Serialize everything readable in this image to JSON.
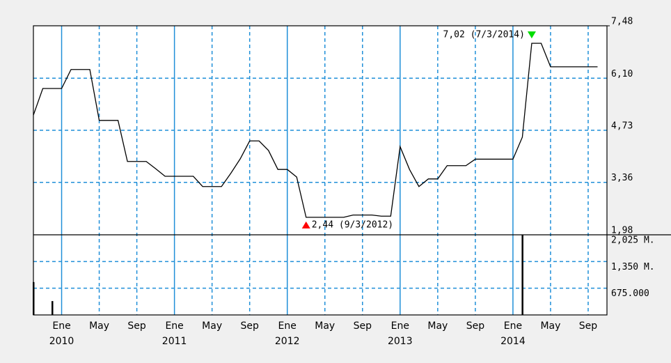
{
  "chart_data": {
    "type": "line",
    "x": [
      "2009-10",
      "2009-11",
      "2009-12",
      "2010-01",
      "2010-02",
      "2010-03",
      "2010-04",
      "2010-05",
      "2010-06",
      "2010-07",
      "2010-08",
      "2010-09",
      "2010-10",
      "2010-11",
      "2010-12",
      "2011-01",
      "2011-02",
      "2011-03",
      "2011-04",
      "2011-05",
      "2011-06",
      "2011-07",
      "2011-08",
      "2011-09",
      "2011-10",
      "2011-11",
      "2011-12",
      "2012-01",
      "2012-02",
      "2012-03",
      "2012-04",
      "2012-05",
      "2012-06",
      "2012-07",
      "2012-08",
      "2012-09",
      "2012-10",
      "2012-11",
      "2012-12",
      "2013-01",
      "2013-02",
      "2013-03",
      "2013-04",
      "2013-05",
      "2013-06",
      "2013-07",
      "2013-08",
      "2013-09",
      "2013-10",
      "2013-11",
      "2013-12",
      "2014-01",
      "2014-02",
      "2014-03",
      "2014-04",
      "2014-05",
      "2014-06",
      "2014-07",
      "2014-08",
      "2014-09",
      "2014-10"
    ],
    "series": [
      {
        "color": "#000000",
        "values": [
          5.13,
          5.83,
          5.83,
          5.83,
          6.33,
          6.33,
          6.33,
          4.99,
          4.99,
          4.99,
          3.91,
          3.91,
          3.91,
          3.72,
          3.52,
          3.52,
          3.52,
          3.52,
          3.25,
          3.25,
          3.25,
          3.6,
          3.98,
          4.45,
          4.45,
          4.2,
          3.7,
          3.7,
          3.5,
          2.44,
          2.44,
          2.44,
          2.44,
          2.44,
          2.5,
          2.5,
          2.5,
          2.47,
          2.47,
          4.3,
          3.7,
          3.25,
          3.45,
          3.45,
          3.8,
          3.8,
          3.8,
          3.97,
          3.97,
          3.97,
          3.97,
          3.97,
          4.55,
          7.02,
          7.02,
          6.4,
          6.4,
          6.4,
          6.4,
          6.4,
          6.4
        ]
      }
    ],
    "xlim": [
      "2009-10",
      "2014-11"
    ],
    "xticks": [
      {
        "value": "2010-01",
        "label": "Ene"
      },
      {
        "value": "2010-05",
        "label": "May"
      },
      {
        "value": "2010-09",
        "label": "Sep"
      },
      {
        "value": "2011-01",
        "label": "Ene"
      },
      {
        "value": "2011-05",
        "label": "May"
      },
      {
        "value": "2011-09",
        "label": "Sep"
      },
      {
        "value": "2012-01",
        "label": "Ene"
      },
      {
        "value": "2012-05",
        "label": "May"
      },
      {
        "value": "2012-09",
        "label": "Sep"
      },
      {
        "value": "2013-01",
        "label": "Ene"
      },
      {
        "value": "2013-05",
        "label": "May"
      },
      {
        "value": "2013-09",
        "label": "Sep"
      },
      {
        "value": "2014-01",
        "label": "Ene"
      },
      {
        "value": "2014-05",
        "label": "May"
      },
      {
        "value": "2014-09",
        "label": "Sep"
      }
    ],
    "year_labels": [
      {
        "value": "2010-01",
        "label": "2010"
      },
      {
        "value": "2011-01",
        "label": "2011"
      },
      {
        "value": "2012-01",
        "label": "2012"
      },
      {
        "value": "2013-01",
        "label": "2013"
      },
      {
        "value": "2014-01",
        "label": "2014"
      }
    ],
    "ylim": [
      1.98,
      7.48
    ],
    "yticks": [
      {
        "value": 1.98,
        "label": "1,98"
      },
      {
        "value": 3.36,
        "label": "3,36"
      },
      {
        "value": 4.73,
        "label": "4,73"
      },
      {
        "value": 6.1,
        "label": "6,10"
      },
      {
        "value": 7.48,
        "label": "7,48"
      }
    ],
    "annotations": [
      {
        "x": "2014-03",
        "y": 7.02,
        "text": "7,02 (7/3/2014)",
        "color": "#00dd00",
        "kind": "max"
      },
      {
        "x": "2012-03",
        "y": 2.44,
        "text": "2,44 (9/3/2012)",
        "color": "#ff0000",
        "kind": "min"
      }
    ],
    "volume": {
      "x": [
        "2009-10",
        "2009-12",
        "2014-02"
      ],
      "values": [
        830,
        350,
        2025
      ],
      "color": "#000000",
      "ylim": [
        0,
        2025
      ],
      "yticks": [
        {
          "value": 675,
          "label": "675.000"
        },
        {
          "value": 1350,
          "label": "1,350 M."
        },
        {
          "value": 2025,
          "label": "2,025 M."
        }
      ]
    },
    "grid_color": "#1f8fd8",
    "grid": true
  }
}
